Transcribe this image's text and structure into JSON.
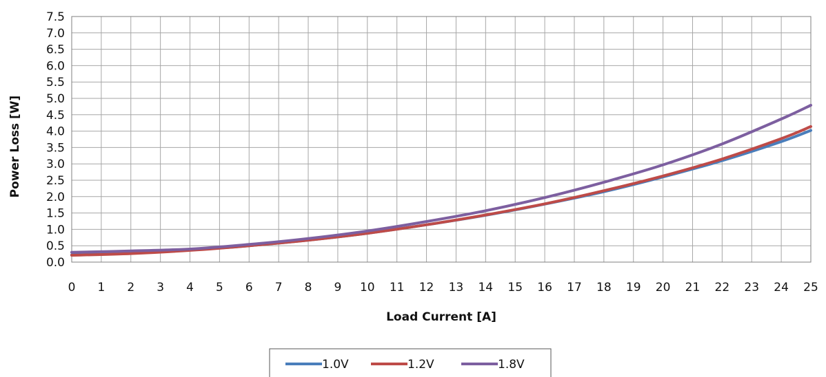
{
  "chart_data": {
    "type": "line",
    "xlabel": "Load Current [A]",
    "ylabel": "Power Loss [W]",
    "xlim": [
      0,
      25
    ],
    "ylim": [
      0,
      7.5
    ],
    "x_ticks": [
      "0",
      "1",
      "2",
      "3",
      "4",
      "5",
      "6",
      "7",
      "8",
      "9",
      "10",
      "11",
      "12",
      "13",
      "14",
      "15",
      "16",
      "17",
      "18",
      "19",
      "20",
      "21",
      "22",
      "23",
      "24",
      "25"
    ],
    "y_ticks": [
      "0.0",
      "0.5",
      "1.0",
      "1.5",
      "2.0",
      "2.5",
      "3.0",
      "3.5",
      "4.0",
      "4.5",
      "5.0",
      "5.5",
      "6.0",
      "6.5",
      "7.0",
      "7.5"
    ],
    "grid": true,
    "legend_position": "bottom",
    "x": [
      0,
      2,
      4,
      6,
      8,
      10,
      12,
      14,
      16,
      18,
      20,
      22,
      24,
      25
    ],
    "series": [
      {
        "name": "1.0V",
        "color": "#4a7ebb",
        "values": [
          0.22,
          0.27,
          0.37,
          0.5,
          0.67,
          0.88,
          1.14,
          1.43,
          1.77,
          2.15,
          2.6,
          3.1,
          3.68,
          4.02
        ]
      },
      {
        "name": "1.2V",
        "color": "#be4b48",
        "values": [
          0.21,
          0.26,
          0.36,
          0.5,
          0.67,
          0.88,
          1.14,
          1.44,
          1.78,
          2.18,
          2.63,
          3.15,
          3.77,
          4.14
        ]
      },
      {
        "name": "1.8V",
        "color": "#7d5fa0",
        "values": [
          0.3,
          0.34,
          0.4,
          0.54,
          0.72,
          0.95,
          1.24,
          1.57,
          1.97,
          2.44,
          2.97,
          3.61,
          4.37,
          4.79
        ]
      }
    ]
  }
}
